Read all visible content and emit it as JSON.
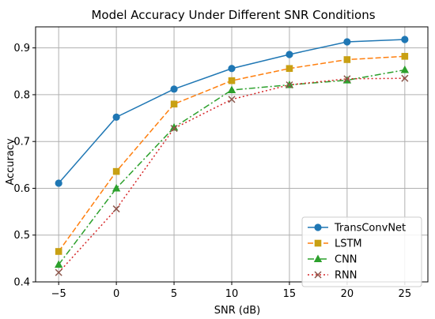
{
  "chart_data": {
    "type": "line",
    "title": "Model Accuracy Under Different SNR Conditions",
    "xlabel": "SNR (dB)",
    "ylabel": "Accuracy",
    "x": [
      -5,
      0,
      5,
      10,
      15,
      20,
      25
    ],
    "xticks": [
      "−5",
      "0",
      "5",
      "10",
      "15",
      "20",
      "25"
    ],
    "yticks": [
      "0.4",
      "0.5",
      "0.6",
      "0.7",
      "0.8",
      "0.9"
    ],
    "xlim": [
      -7,
      27
    ],
    "ylim": [
      0.4,
      0.945
    ],
    "grid": true,
    "legend_position": "bottom-right",
    "series": [
      {
        "name": "TransConvNet",
        "values": [
          0.611,
          0.752,
          0.812,
          0.856,
          0.886,
          0.913,
          0.918
        ],
        "color": "#1f77b4",
        "marker": "circle",
        "line_style": "solid"
      },
      {
        "name": "LSTM",
        "values": [
          0.465,
          0.636,
          0.78,
          0.83,
          0.856,
          0.875,
          0.882
        ],
        "color": "#ff7f0e",
        "marker_color": "#c8a013",
        "marker": "square",
        "line_style": "dashed"
      },
      {
        "name": "CNN",
        "values": [
          0.437,
          0.6,
          0.73,
          0.81,
          0.821,
          0.831,
          0.853
        ],
        "color": "#2ca02c",
        "marker": "triangle",
        "line_style": "dashdot"
      },
      {
        "name": "RNN",
        "values": [
          0.42,
          0.556,
          0.728,
          0.79,
          0.821,
          0.834,
          0.835
        ],
        "color": "#d62728",
        "marker_color": "#8c564b",
        "marker": "x",
        "line_style": "dotted"
      }
    ]
  }
}
